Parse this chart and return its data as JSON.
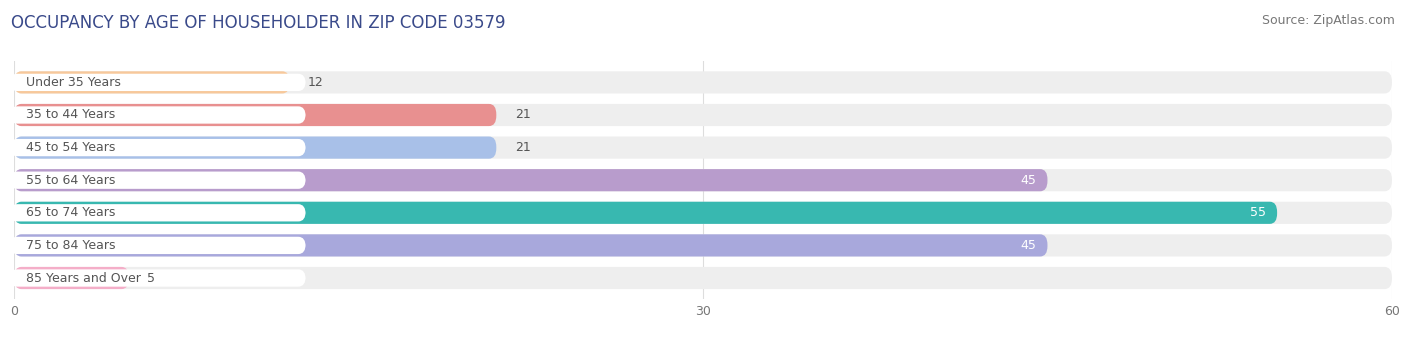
{
  "title": "OCCUPANCY BY AGE OF HOUSEHOLDER IN ZIP CODE 03579",
  "source": "Source: ZipAtlas.com",
  "categories": [
    "Under 35 Years",
    "35 to 44 Years",
    "45 to 54 Years",
    "55 to 64 Years",
    "65 to 74 Years",
    "75 to 84 Years",
    "85 Years and Over"
  ],
  "values": [
    12,
    21,
    21,
    45,
    55,
    45,
    5
  ],
  "bar_colors": [
    "#f7c89b",
    "#e89090",
    "#a8c0e8",
    "#b89ccc",
    "#38b8b0",
    "#a8a8dc",
    "#f4aec8"
  ],
  "bar_bg_color": "#eeeeee",
  "xlim": [
    0,
    60
  ],
  "xticks": [
    0,
    30,
    60
  ],
  "title_fontsize": 12,
  "source_fontsize": 9,
  "label_fontsize": 9,
  "value_fontsize": 9,
  "bar_height": 0.68,
  "background_color": "#ffffff",
  "pill_color": "#ffffff",
  "label_color": "#555555",
  "grid_color": "#dddddd"
}
